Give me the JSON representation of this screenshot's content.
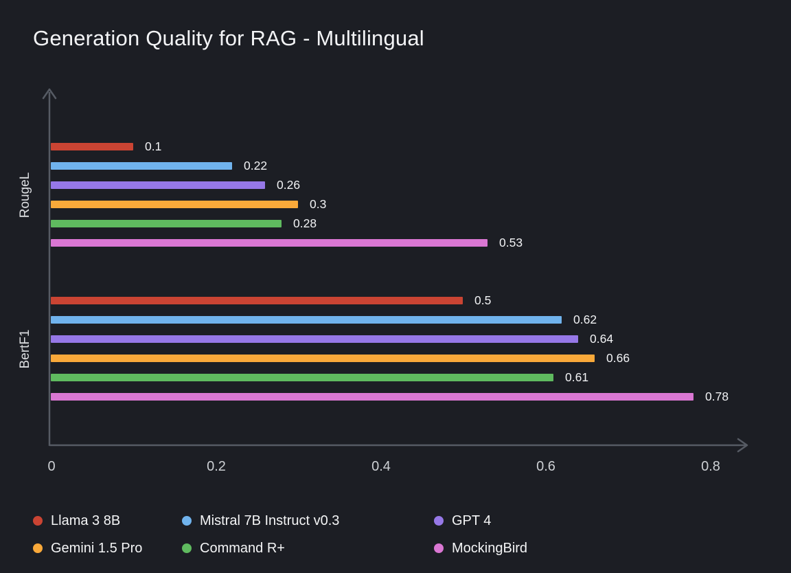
{
  "title": "Generation Quality for RAG - Multilingual",
  "chart_data": {
    "type": "bar",
    "orientation": "horizontal",
    "title": "Generation Quality for RAG - Multilingual",
    "categories": [
      "RougeL",
      "BertF1"
    ],
    "series": [
      {
        "name": "Llama 3 8B",
        "color": "#ca4433",
        "values": [
          0.1,
          0.5
        ]
      },
      {
        "name": "Mistral 7B Instruct v0.3",
        "color": "#70b3ed",
        "values": [
          0.22,
          0.62
        ]
      },
      {
        "name": "GPT 4",
        "color": "#9678e7",
        "values": [
          0.26,
          0.64
        ]
      },
      {
        "name": "Gemini 1.5 Pro",
        "color": "#f9a93a",
        "values": [
          0.3,
          0.66
        ]
      },
      {
        "name": "Command R+",
        "color": "#5fba5f",
        "values": [
          0.28,
          0.61
        ]
      },
      {
        "name": "MockingBird",
        "color": "#da77d3",
        "values": [
          0.53,
          0.78
        ]
      }
    ],
    "x_ticks": [
      {
        "label": "0",
        "value": 0
      },
      {
        "label": "0.2",
        "value": 0.2
      },
      {
        "label": "0.4",
        "value": 0.4
      },
      {
        "label": "0.6",
        "value": 0.6
      },
      {
        "label": "0.8",
        "value": 0.8
      }
    ],
    "xlim": [
      0,
      0.86
    ],
    "grid": false,
    "legend_position": "bottom",
    "value_labels_shown": true
  },
  "colors": {
    "background": "#1c1e24",
    "axis": "#565b64",
    "title_text": "#f3f4f6",
    "value_text": "#f2f3f5",
    "tick_text": "#cdd0d4",
    "group_text": "#dcdee1",
    "legend_text": "#f4f5f6"
  }
}
